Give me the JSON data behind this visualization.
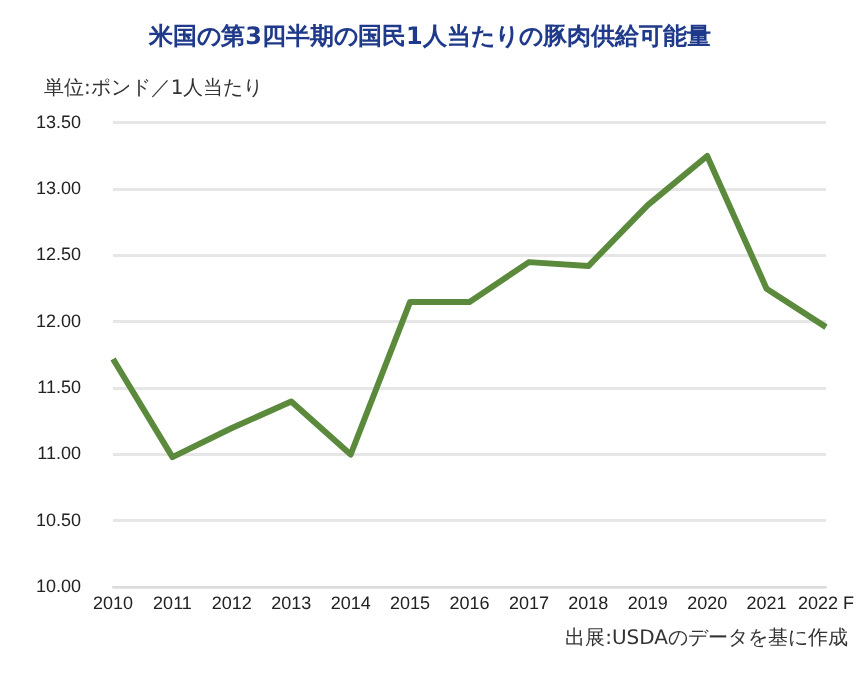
{
  "chart_data": {
    "type": "line",
    "title": "米国の第3四半期の国民1人当たりの豚肉供給可能量",
    "ylabel": "単位:ポンド／1人当たり",
    "categories": [
      "2010",
      "2011",
      "2012",
      "2013",
      "2014",
      "2015",
      "2016",
      "2017",
      "2018",
      "2019",
      "2020",
      "2021",
      "2022 F"
    ],
    "series": [
      {
        "color": "#5b8a3c",
        "values": [
          11.72,
          10.98,
          11.2,
          11.4,
          11.0,
          12.15,
          12.15,
          12.45,
          12.42,
          12.88,
          13.25,
          12.25,
          11.96
        ]
      }
    ],
    "ylim": [
      10,
      13.5
    ],
    "yticks": [
      {
        "value": 10,
        "label": "10.00"
      },
      {
        "value": 10.5,
        "label": "10.50"
      },
      {
        "value": 11,
        "label": "11.00"
      },
      {
        "value": 11.5,
        "label": "11.50"
      },
      {
        "value": 12,
        "label": "12.00"
      },
      {
        "value": 12.5,
        "label": "12.50"
      },
      {
        "value": 13,
        "label": "13.00"
      },
      {
        "value": 13.5,
        "label": "13.50"
      }
    ],
    "grid": "y",
    "legend": false,
    "marker": "none",
    "line_style": "solid",
    "annotations": [
      "出展:USDAのデータを基に作成"
    ]
  }
}
